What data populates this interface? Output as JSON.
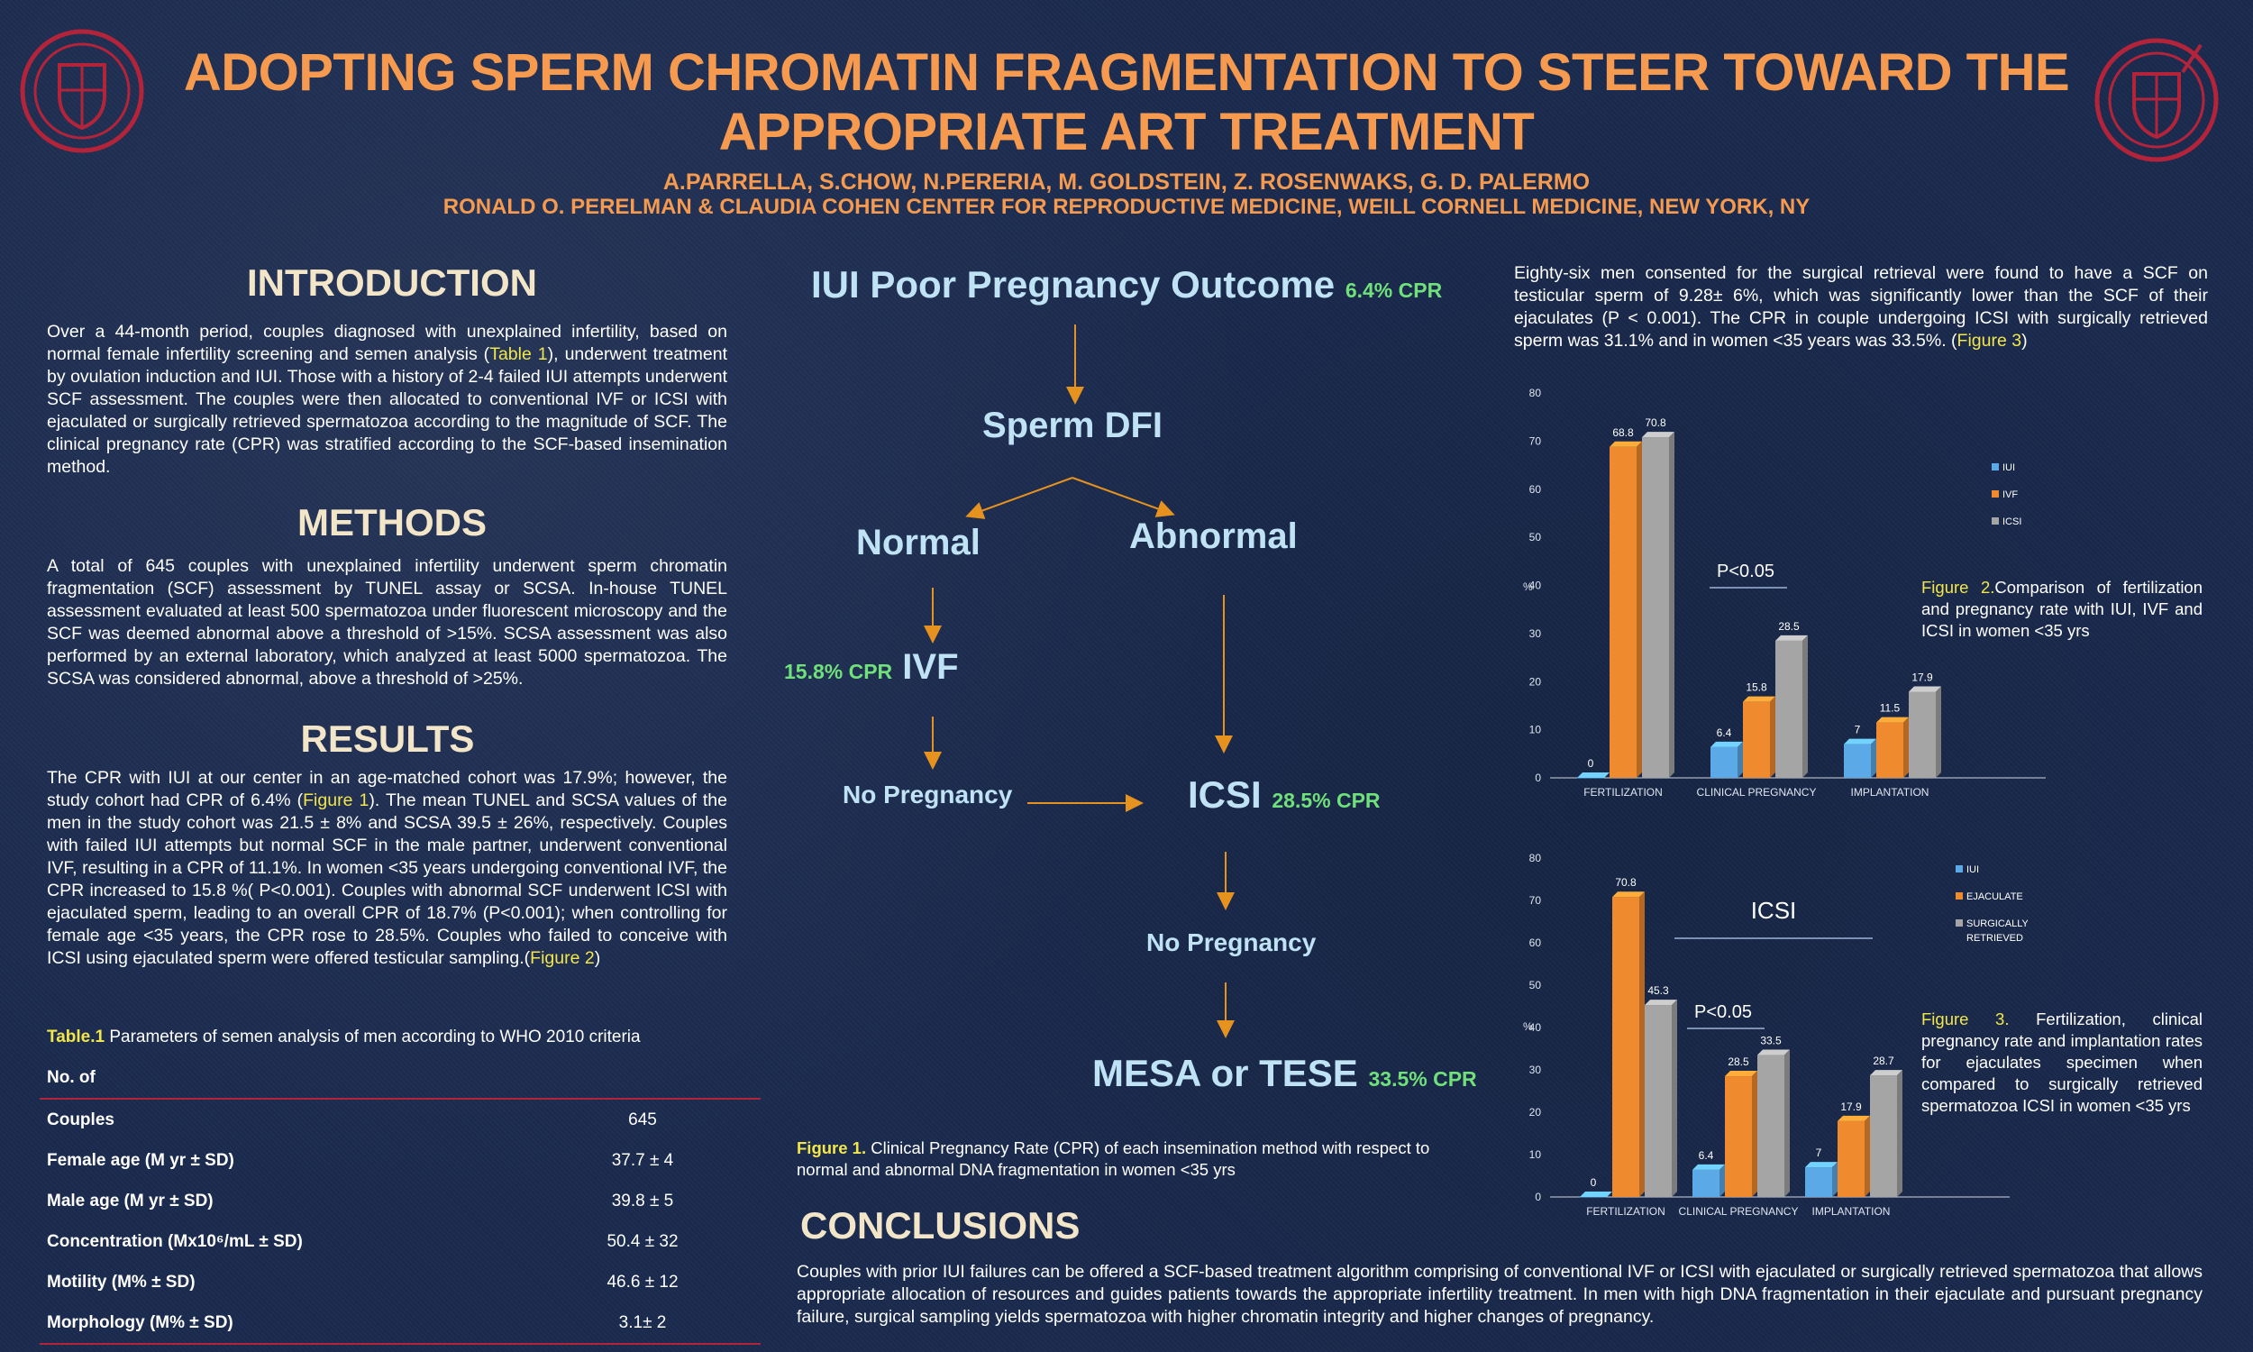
{
  "header": {
    "title_line1": "ADOPTING SPERM CHROMATIN FRAGMENTATION TO STEER TOWARD THE",
    "title_line2": "APPROPRIATE ART TREATMENT",
    "authors": "A.PARRELLA, S.CHOW, N.PERERIA, M. GOLDSTEIN, Z. ROSENWAKS, G. D. PALERMO",
    "affiliation": "RONALD O. PERELMAN & CLAUDIA COHEN CENTER FOR REPRODUCTIVE MEDICINE, WEILL CORNELL MEDICINE, NEW YORK, NY"
  },
  "intro": {
    "heading": "INTRODUCTION",
    "text_a": "Over a 44-month period, couples diagnosed with unexplained infertility, based on normal female infertility screening and semen analysis (",
    "link": "Table 1",
    "text_b": "), underwent treatment by ovulation induction and IUI. Those with a history of 2-4 failed IUI attempts underwent SCF assessment. The couples were then allocated to conventional IVF or ICSI with ejaculated or surgically retrieved spermatozoa according to the magnitude of SCF. The clinical pregnancy rate (CPR) was stratified according to the SCF-based insemination method."
  },
  "methods": {
    "heading": "METHODS",
    "text": "A total of 645 couples with unexplained infertility underwent sperm chromatin fragmentation (SCF) assessment by TUNEL assay or SCSA. In-house TUNEL assessment evaluated at least 500 spermatozoa under fluorescent microscopy and the SCF was deemed abnormal above a threshold of >15%. SCSA assessment was also performed by an external laboratory, which analyzed at least 5000 spermatozoa. The SCSA was considered abnormal, above a threshold of >25%."
  },
  "results": {
    "heading": "RESULTS",
    "text_a": "The CPR with IUI at our center in an age-matched cohort was 17.9%; however, the study cohort had CPR of 6.4% (",
    "link1": "Figure 1",
    "text_b": "). The mean TUNEL and SCSA values of the men in the study cohort was 21.5 ± 8% and SCSA 39.5 ± 26%, respectively.  Couples with failed IUI attempts but normal SCF in the male partner, underwent conventional IVF, resulting in a CPR of 11.1%. In women <35 years undergoing conventional IVF, the CPR increased to 15.8 %( P<0.001). Couples with abnormal SCF underwent ICSI with ejaculated sperm, leading to an overall CPR of 18.7% (P<0.001); when controlling for female age <35 years, the CPR rose to 28.5%. Couples who failed to conceive with ICSI using ejaculated sperm were offered testicular sampling.(",
    "link2": "Figure 2",
    "text_c": ")"
  },
  "table": {
    "caption_label": "Table.1",
    "caption_text": " Parameters of semen analysis of men according to WHO 2010 criteria",
    "header": "No. of",
    "rows": [
      {
        "label": "Couples",
        "value": "645"
      },
      {
        "label": "Female age (M yr ± SD)",
        "value": "37.7 ± 4"
      },
      {
        "label": "Male age (M yr ± SD)",
        "value": "39.8 ± 5"
      },
      {
        "label": "Concentration (Mx10⁶/mL ± SD)",
        "value": "50.4 ± 32"
      },
      {
        "label": "Motility (M% ± SD)",
        "value": "46.6 ± 12"
      },
      {
        "label": "Morphology (M% ± SD)",
        "value": "3.1± 2"
      }
    ]
  },
  "flow": {
    "iui": "IUI Poor Pregnancy Outcome",
    "iui_cpr": "6.4% CPR",
    "dfi": "Sperm DFI",
    "normal": "Normal",
    "abnormal": "Abnormal",
    "ivf": "IVF",
    "ivf_cpr": "15.8% CPR",
    "no_preg1": "No Pregnancy",
    "icsi": "ICSI",
    "icsi_cpr": "28.5% CPR",
    "no_preg2": "No Pregnancy",
    "mesa": "MESA or TESE",
    "mesa_cpr": "33.5% CPR",
    "fig_label": "Figure 1.",
    "fig_text": " Clinical Pregnancy Rate (CPR) of each insemination method with respect to normal and abnormal DNA fragmentation in women  <35 yrs"
  },
  "conclusions": {
    "heading": "CONCLUSIONS",
    "text": "Couples with prior IUI failures can be offered a SCF-based treatment algorithm comprising of conventional IVF or ICSI with ejaculated or surgically retrieved spermatozoa that allows appropriate allocation of resources and guides patients towards the appropriate infertility treatment. In men with high DNA fragmentation in their ejaculate and pursuant pregnancy failure, surgical sampling yields spermatozoa with higher chromatin integrity and higher changes of pregnancy."
  },
  "right": {
    "text_a": "Eighty-six men consented for the surgical retrieval were found to have a SCF on testicular sperm of 9.28± 6%, which was significantly lower than the SCF of their ejaculates (P < 0.001). The CPR in couple undergoing ICSI with surgically retrieved sperm was 31.1% and in women <35 years was 33.5%. (",
    "link": "Figure 3",
    "text_b": ")",
    "fig2_label": "Figure 2.",
    "fig2_text": "Comparison of fertilization and pregnancy rate with IUI, IVF and ICSI in women <35 yrs",
    "fig3_label": "Figure 3.",
    "fig3_text": " Fertilization, clinical pregnancy rate and implantation rates for ejaculates specimen when compared to surgically retrieved spermatozoa ICSI in women <35 yrs"
  },
  "chart_data": [
    {
      "type": "bar",
      "categories": [
        "FERTILIZATION",
        "CLINICAL PREGNANCY",
        "IMPLANTATION"
      ],
      "series": [
        {
          "name": "IUI",
          "values": [
            0,
            6.4,
            7
          ],
          "color": "#5ba9e6"
        },
        {
          "name": "IVF",
          "values": [
            68.8,
            15.8,
            11.5
          ],
          "color": "#f08a2e"
        },
        {
          "name": "ICSI",
          "values": [
            70.8,
            28.5,
            17.9
          ],
          "color": "#a5a5a5"
        }
      ],
      "ylabel": "%",
      "ylim": [
        0,
        80
      ],
      "yticks": [
        0,
        10,
        20,
        30,
        40,
        50,
        60,
        70,
        80
      ],
      "annotation": "P<0.05",
      "legend": "right"
    },
    {
      "type": "bar",
      "title": "ICSI",
      "categories": [
        "FERTILIZATION",
        "CLINICAL PREGNANCY",
        "IMPLANTATION"
      ],
      "series": [
        {
          "name": "IUI",
          "values": [
            0,
            6.4,
            7
          ],
          "color": "#5ba9e6"
        },
        {
          "name": "EJACULATE",
          "values": [
            70.8,
            28.5,
            17.9
          ],
          "color": "#f08a2e"
        },
        {
          "name": "SURGICALLY RETRIEVED",
          "values": [
            45.3,
            33.5,
            28.7
          ],
          "color": "#a5a5a5"
        }
      ],
      "ylabel": "%",
      "ylim": [
        0,
        80
      ],
      "yticks": [
        0,
        10,
        20,
        30,
        40,
        50,
        60,
        70,
        80
      ],
      "annotation": "P<0.05",
      "legend": "top-right"
    }
  ]
}
